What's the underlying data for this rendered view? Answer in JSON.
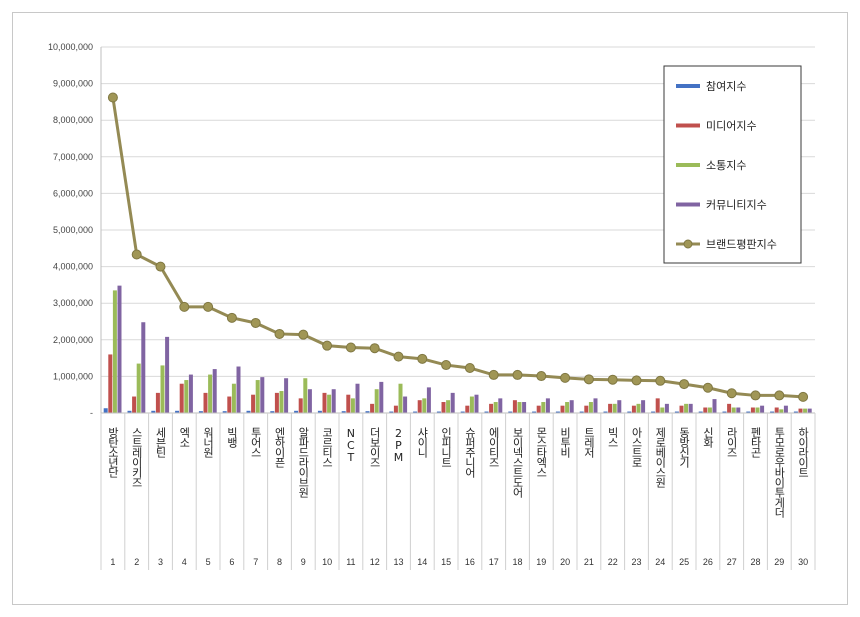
{
  "chart_data": {
    "type": "bar",
    "title": "",
    "xlabel": "",
    "ylabel": "",
    "ylim": [
      0,
      10000000
    ],
    "yticks": [
      "-",
      "1,000,000",
      "2,000,000",
      "3,000,000",
      "4,000,000",
      "5,000,000",
      "6,000,000",
      "7,000,000",
      "8,000,000",
      "9,000,000",
      "10,000,000"
    ],
    "grid": true,
    "legend_position": "top-right",
    "categories": [
      "방탄소년단",
      "스트레이키즈",
      "세븐틴",
      "엑소",
      "워너원",
      "빅뱅",
      "투어스",
      "엔하이픈",
      "알파드라이브원",
      "코르티스",
      "NCT",
      "더보이즈",
      "2PM",
      "샤이니",
      "인피니트",
      "슈퍼주니어",
      "에이티즈",
      "보이넥스트도어",
      "몬스타엑스",
      "비투비",
      "트레저",
      "빅스",
      "아스트로",
      "제로베이스원",
      "동방신기",
      "신화",
      "라이즈",
      "펜타곤",
      "투모로우바이투게더",
      "하이라이트"
    ],
    "ranks": [
      "1",
      "2",
      "3",
      "4",
      "5",
      "6",
      "7",
      "8",
      "9",
      "10",
      "11",
      "12",
      "13",
      "14",
      "15",
      "16",
      "17",
      "18",
      "19",
      "20",
      "21",
      "22",
      "23",
      "24",
      "25",
      "26",
      "27",
      "28",
      "29",
      "30"
    ],
    "series": [
      {
        "name": "참여지수",
        "color": "#4472c4",
        "values": [
          130000,
          60000,
          60000,
          60000,
          50000,
          50000,
          60000,
          50000,
          60000,
          60000,
          50000,
          50000,
          40000,
          40000,
          40000,
          40000,
          40000,
          40000,
          40000,
          40000,
          40000,
          40000,
          40000,
          40000,
          40000,
          40000,
          40000,
          40000,
          40000,
          40000
        ]
      },
      {
        "name": "미디어지수",
        "color": "#c0504d",
        "values": [
          1600000,
          450000,
          550000,
          800000,
          550000,
          450000,
          500000,
          550000,
          400000,
          550000,
          500000,
          250000,
          200000,
          350000,
          300000,
          200000,
          250000,
          350000,
          200000,
          200000,
          200000,
          250000,
          200000,
          400000,
          200000,
          150000,
          250000,
          150000,
          150000,
          120000
        ]
      },
      {
        "name": "소통지수",
        "color": "#9bbb59",
        "values": [
          3350000,
          1350000,
          1300000,
          900000,
          1050000,
          800000,
          900000,
          600000,
          950000,
          500000,
          400000,
          650000,
          800000,
          400000,
          350000,
          450000,
          300000,
          300000,
          300000,
          300000,
          300000,
          250000,
          250000,
          150000,
          250000,
          150000,
          150000,
          150000,
          100000,
          120000
        ]
      },
      {
        "name": "커뮤니티지수",
        "color": "#8064a2",
        "values": [
          3480000,
          2480000,
          2080000,
          1050000,
          1200000,
          1270000,
          980000,
          950000,
          650000,
          650000,
          800000,
          850000,
          450000,
          700000,
          550000,
          500000,
          400000,
          300000,
          400000,
          350000,
          400000,
          350000,
          350000,
          250000,
          250000,
          380000,
          150000,
          200000,
          200000,
          120000
        ]
      },
      {
        "name": "브랜드평판지수",
        "color": "#948a54",
        "type": "line",
        "values": [
          8620000,
          4330000,
          4000000,
          2900000,
          2900000,
          2600000,
          2460000,
          2160000,
          2140000,
          1840000,
          1790000,
          1770000,
          1540000,
          1480000,
          1310000,
          1230000,
          1040000,
          1040000,
          1010000,
          960000,
          920000,
          910000,
          890000,
          880000,
          790000,
          690000,
          540000,
          480000,
          480000,
          440000
        ]
      }
    ]
  }
}
